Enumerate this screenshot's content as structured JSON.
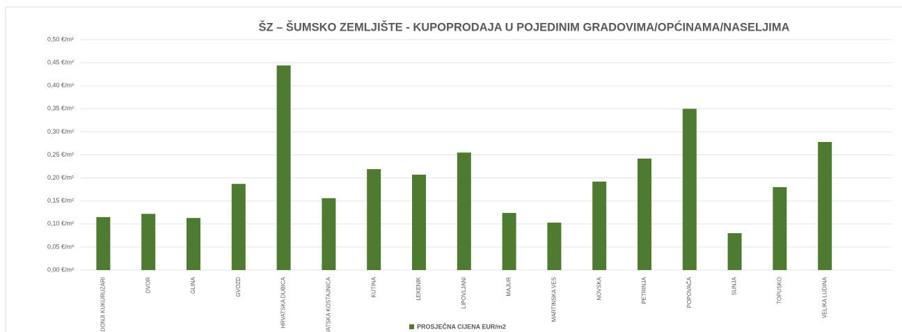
{
  "chart_data": {
    "type": "bar",
    "title": "ŠZ – ŠUMSKO ZEMLJIŠTE - KUPOPRODAJA  U POJEDINIM GRADOVIMA/OPĆINAMA/NASELJIMA",
    "categories": [
      "DONJI KUKURUZARI",
      "DVOR",
      "GLINA",
      "GVOZD",
      "HRVATSKA DUBICA",
      "HRVATSKA KOSTAJNICA",
      "KUTINA",
      "LEKENIK",
      "LIPOVLJANI",
      "MAJUR",
      "MARTINSKA VES",
      "NOVSKA",
      "PETRINJA",
      "POPOVAČA",
      "SUNJA",
      "TOPUSKO",
      "VELIKA LUDINA"
    ],
    "series": [
      {
        "name": "PROSJEČNA CIJENA EUR/m2",
        "color": "#4e7a31",
        "values": [
          0.115,
          0.122,
          0.113,
          0.187,
          0.444,
          0.156,
          0.219,
          0.207,
          0.255,
          0.124,
          0.103,
          0.192,
          0.242,
          0.35,
          0.08,
          0.18,
          0.278
        ]
      }
    ],
    "ylim": [
      0,
      0.5
    ],
    "yticks": [
      {
        "value": 0,
        "label": "0,00 €/m²"
      },
      {
        "value": 0.05,
        "label": "0,05 €/m²"
      },
      {
        "value": 0.1,
        "label": "0,10 €/m²"
      },
      {
        "value": 0.15,
        "label": "0,15 €/m²"
      },
      {
        "value": 0.2,
        "label": "0,20 €/m²"
      },
      {
        "value": 0.25,
        "label": "0,25 €/m²"
      },
      {
        "value": 0.3,
        "label": "0,30 €/m²"
      },
      {
        "value": 0.35,
        "label": "0,35 €/m²"
      },
      {
        "value": 0.4,
        "label": "0,40 €/m²"
      },
      {
        "value": 0.45,
        "label": "0,45 €/m²"
      },
      {
        "value": 0.5,
        "label": "0,50 €/m²"
      }
    ],
    "grid": true,
    "legend": "bottom"
  }
}
